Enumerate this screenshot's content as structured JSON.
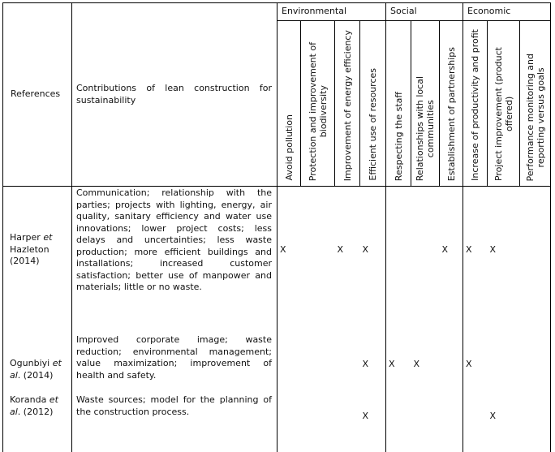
{
  "header": {
    "references": "References",
    "contributions": "Contributions of lean construction for sustainability",
    "groups": [
      {
        "label": "Environmental",
        "span": 4
      },
      {
        "label": "Social",
        "span": 3
      },
      {
        "label": "Economic",
        "span": 3
      }
    ],
    "criteria": [
      "Avoid pollution",
      "Protection and improvement of\nbiodiversity",
      "Improvement of energy efficiency",
      "Efficient use of resources",
      "Respecting the staff",
      "Relationships with local\ncommunities",
      "Establishment of partnerships",
      "Increase of productivity and profit",
      "Project improvement (product\noffered)",
      "Performance monitoring and\nreporting versus goals"
    ]
  },
  "mark_symbol": "X",
  "rows": [
    {
      "ref_parts": [
        {
          "t": "Harper "
        },
        {
          "t": "et",
          "i": true
        },
        {
          "t": " Hazleton (2014)"
        }
      ],
      "contribution": "Communication; relationship with the parties; projects with lighting, energy, air quality, sanitary efficiency and water use innovations; lower project costs; less delays and uncertainties; less waste production; more efficient buildings and installations; increased customer satisfaction; better use of manpower and materials; little or no waste.",
      "marks": [
        true,
        false,
        true,
        true,
        false,
        false,
        true,
        true,
        true,
        false
      ]
    },
    {
      "ref_parts": [
        {
          "t": "Ogunbiyi "
        },
        {
          "t": "et al",
          "i": true
        },
        {
          "t": ". (2014)"
        }
      ],
      "contribution": "Improved corporate image; waste reduction; environmental management; value maximization; improvement of health and safety.",
      "marks": [
        false,
        false,
        false,
        true,
        true,
        true,
        false,
        true,
        false,
        false
      ]
    },
    {
      "ref_parts": [
        {
          "t": "Koranda "
        },
        {
          "t": "et al",
          "i": true
        },
        {
          "t": ". (2012)"
        }
      ],
      "contribution": "Waste sources; model for the planning of the construction process.",
      "marks": [
        false,
        false,
        false,
        true,
        false,
        false,
        false,
        false,
        true,
        false
      ]
    }
  ]
}
